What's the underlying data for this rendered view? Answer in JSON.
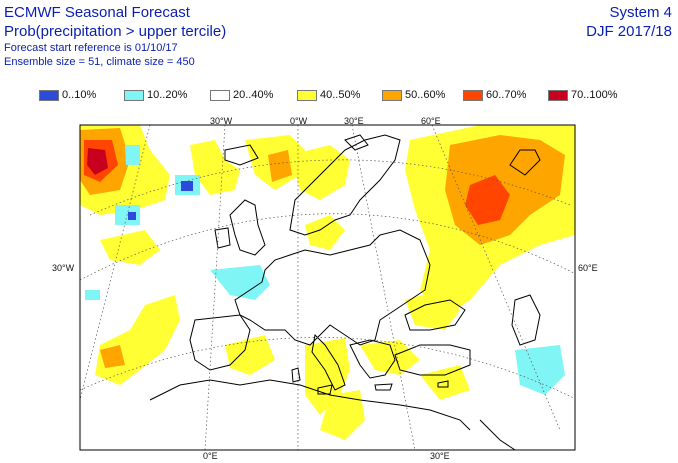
{
  "header": {
    "title": "ECMWF Seasonal Forecast",
    "subtitle": "Prob(precipitation > upper tercile)",
    "start_ref": "Forecast start reference is 01/10/17",
    "ensemble": "Ensemble size = 51, climate size = 450",
    "system": "System 4",
    "season": "DJF 2017/18"
  },
  "legend": [
    {
      "label": "0..10%",
      "color": "#2c4bdc"
    },
    {
      "label": "10..20%",
      "color": "#7ff5f5"
    },
    {
      "label": "20..40%",
      "color": "#ffffff"
    },
    {
      "label": "40..50%",
      "color": "#ffff33"
    },
    {
      "label": "50..60%",
      "color": "#ffa500"
    },
    {
      "label": "60..70%",
      "color": "#ff4500"
    },
    {
      "label": "70..100%",
      "color": "#c8001e"
    }
  ],
  "grid_labels": {
    "top": [
      "30°W",
      "0°W",
      "30°E",
      "60°E"
    ],
    "left": "30°W",
    "right": "60°E",
    "bottom": [
      "0°E",
      "30°E"
    ]
  }
}
